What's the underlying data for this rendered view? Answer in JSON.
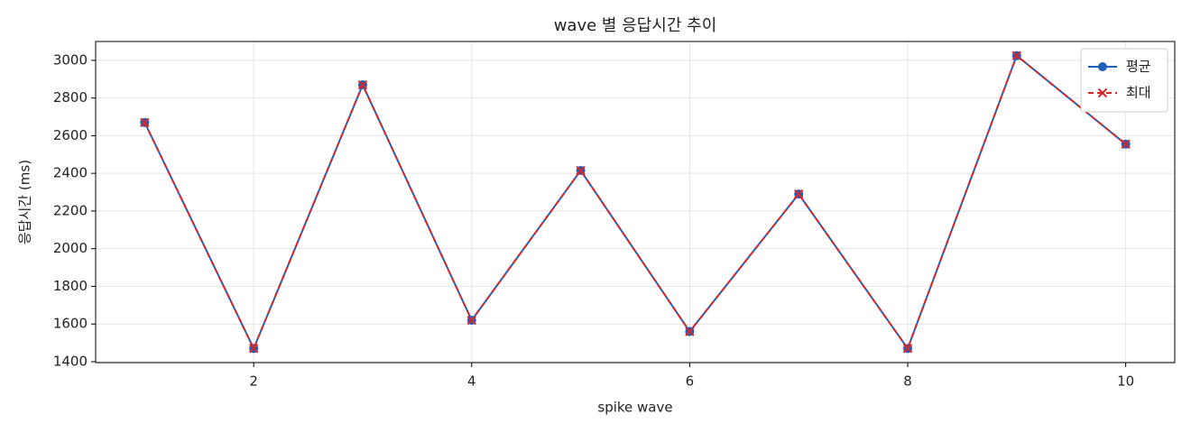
{
  "chart_data": {
    "type": "line",
    "title": "wave 별 응답시간 추이",
    "x_label": "spike wave",
    "y_label": "응답시간 (ms)",
    "x": [
      1,
      2,
      3,
      4,
      5,
      6,
      7,
      8,
      9,
      10
    ],
    "series": [
      {
        "name": "평균",
        "color": "#1f5fbf",
        "marker": "o",
        "dash": false,
        "values": [
          2670,
          1470,
          2870,
          1620,
          2415,
          1560,
          2290,
          1470,
          3025,
          2555
        ]
      },
      {
        "name": "최대",
        "color": "#d62728",
        "marker": "x",
        "dash": true,
        "values": [
          2670,
          1470,
          2870,
          1620,
          2415,
          1560,
          2290,
          1470,
          3025,
          2555
        ]
      }
    ],
    "xlim": [
      0.55,
      10.45
    ],
    "ylim": [
      1395,
      3100
    ],
    "xticks": [
      2,
      4,
      6,
      8,
      10
    ],
    "yticks": [
      1400,
      1600,
      1800,
      2000,
      2200,
      2400,
      2600,
      2800,
      3000
    ],
    "grid": true,
    "legend": "upper right"
  }
}
